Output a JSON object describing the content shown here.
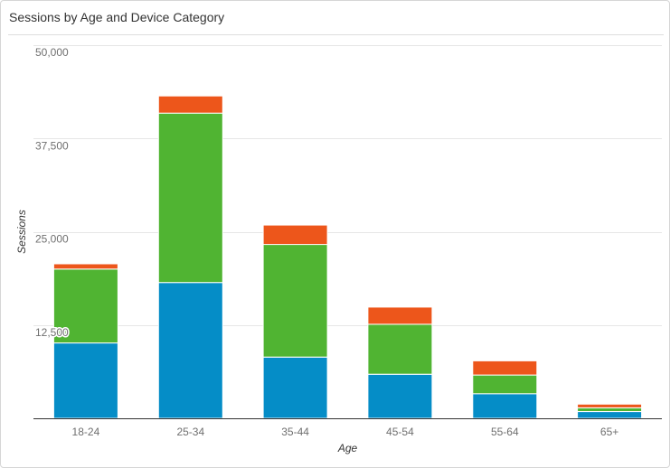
{
  "card": {
    "title": "Sessions by Age and Device Category"
  },
  "chart_data": {
    "type": "bar",
    "stacked": true,
    "title": "Sessions by Age and Device Category",
    "xlabel": "Age",
    "ylabel": "Sessions",
    "categories": [
      "18-24",
      "25-34",
      "35-44",
      "45-54",
      "55-64",
      "65+"
    ],
    "ylim": [
      0,
      50000
    ],
    "yticks": [
      "12,500",
      "25,000",
      "37,500",
      "50,000"
    ],
    "ytick_values": [
      12500,
      25000,
      37500,
      50000
    ],
    "grid": true,
    "series": [
      {
        "values": [
          10100,
          18200,
          8200,
          5900,
          3300,
          900
        ],
        "color": "#058dc7"
      },
      {
        "values": [
          9900,
          22700,
          15100,
          6700,
          2500,
          500
        ],
        "color": "#50b432"
      },
      {
        "values": [
          700,
          2300,
          2600,
          2300,
          1900,
          500
        ],
        "color": "#ed561b"
      }
    ]
  }
}
